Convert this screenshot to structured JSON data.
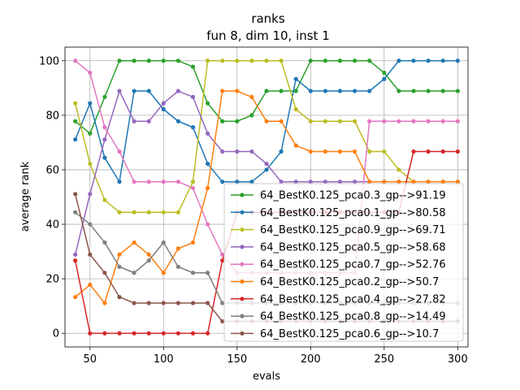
{
  "chart_data": {
    "type": "line",
    "title": "ranks",
    "subtitle": "fun 8, dim 10, inst 1",
    "xlabel": "evals",
    "ylabel": "average rank",
    "xlim": [
      33,
      307
    ],
    "ylim": [
      -5,
      105
    ],
    "xticks": [
      50,
      100,
      150,
      200,
      250,
      300
    ],
    "yticks": [
      0,
      20,
      40,
      60,
      80,
      100
    ],
    "grid": true,
    "legend_position": "lower right",
    "x": [
      40,
      50,
      60,
      70,
      80,
      90,
      100,
      110,
      120,
      130,
      140,
      150,
      160,
      170,
      180,
      190,
      200,
      210,
      220,
      230,
      240,
      250,
      260,
      270,
      280,
      290,
      300
    ],
    "series": [
      {
        "name": "64_BestK0.125_pca0.3_gp-->91.19",
        "color": "#2ca02c",
        "values": [
          77.8,
          73.3,
          86.7,
          100,
          100,
          100,
          100,
          100,
          97.8,
          84.4,
          77.8,
          77.8,
          80,
          88.9,
          88.9,
          88.9,
          100,
          100,
          100,
          100,
          100,
          95.6,
          88.9,
          88.9,
          88.9,
          88.9,
          88.9
        ]
      },
      {
        "name": "64_BestK0.125_pca0.1_gp-->80.58",
        "color": "#1f77b4",
        "values": [
          71.1,
          84.4,
          64.4,
          55.6,
          88.9,
          88.9,
          82.2,
          77.8,
          75.6,
          62.2,
          55.6,
          55.6,
          55.6,
          60,
          66.7,
          93.3,
          88.9,
          88.9,
          88.9,
          88.9,
          88.9,
          93.3,
          100,
          100,
          100,
          100,
          100
        ]
      },
      {
        "name": "64_BestK0.125_pca0.9_gp-->69.71",
        "color": "#bcbd22",
        "values": [
          84.4,
          62.2,
          48.9,
          44.4,
          44.4,
          44.4,
          44.4,
          44.4,
          55.6,
          100,
          100,
          100,
          100,
          100,
          100,
          82.2,
          77.8,
          77.8,
          77.8,
          77.8,
          66.7,
          66.7,
          60,
          55.6,
          55.6,
          55.6,
          55.6
        ]
      },
      {
        "name": "64_BestK0.125_pca0.5_gp-->58.68",
        "color": "#9467bd",
        "values": [
          28.9,
          51.1,
          71.1,
          88.9,
          77.8,
          77.8,
          84.4,
          88.9,
          86.7,
          73.3,
          66.7,
          66.7,
          66.7,
          62.2,
          55.6,
          55.6,
          55.6,
          55.6,
          55.6,
          55.6,
          55.6,
          55.6,
          55.6,
          55.6,
          55.6,
          55.6,
          55.6
        ]
      },
      {
        "name": "64_BestK0.125_pca0.7_gp-->52.76",
        "color": "#e377c2",
        "values": [
          100,
          95.6,
          75.6,
          66.7,
          55.6,
          55.6,
          55.6,
          55.6,
          53.3,
          40,
          28.9,
          22.2,
          22.2,
          22.2,
          22.2,
          22.2,
          22.2,
          22.2,
          22.2,
          22.2,
          77.8,
          77.8,
          77.8,
          77.8,
          77.8,
          77.8,
          77.8
        ]
      },
      {
        "name": "64_BestK0.125_pca0.2_gp-->50.7",
        "color": "#ff7f0e",
        "values": [
          13.3,
          17.8,
          11.1,
          28.9,
          33.3,
          28.9,
          22.2,
          31.1,
          33.3,
          53.3,
          88.9,
          88.9,
          86.7,
          77.8,
          77.8,
          68.9,
          66.7,
          66.7,
          66.7,
          66.7,
          55.6,
          55.6,
          55.6,
          55.6,
          55.6,
          55.6,
          55.6
        ]
      },
      {
        "name": "64_BestK0.125_pca0.4_gp-->27.82",
        "color": "#d62728",
        "values": [
          26.7,
          0,
          0,
          0,
          0,
          0,
          0,
          0,
          0,
          0,
          26.7,
          44.4,
          44.4,
          44.4,
          44.4,
          44.4,
          44.4,
          44.4,
          44.4,
          44.4,
          44.4,
          44.4,
          44.4,
          66.7,
          66.7,
          66.7,
          66.7
        ]
      },
      {
        "name": "64_BestK0.125_pca0.8_gp-->14.49",
        "color": "#7f7f7f",
        "values": [
          44.4,
          40,
          33.3,
          24.4,
          22.2,
          26.7,
          33.3,
          24.4,
          22.2,
          22.2,
          11.1,
          11.1,
          11.1,
          11.1,
          11.1,
          11.1,
          11.1,
          11.1,
          11.1,
          11.1,
          11.1,
          11.1,
          11.1,
          11.1,
          11.1,
          11.1,
          11.1
        ]
      },
      {
        "name": "64_BestK0.125_pca0.6_gp-->10.7",
        "color": "#8c564b",
        "values": [
          51.1,
          28.9,
          22.2,
          13.3,
          11.1,
          11.1,
          11.1,
          11.1,
          11.1,
          11.1,
          4.4,
          4.4,
          4.4,
          4.4,
          4.4,
          4.4,
          4.4,
          4.4,
          4.4,
          4.4,
          4.4,
          4.4,
          4.4,
          4.4,
          4.4,
          4.4,
          4.4
        ]
      }
    ]
  }
}
